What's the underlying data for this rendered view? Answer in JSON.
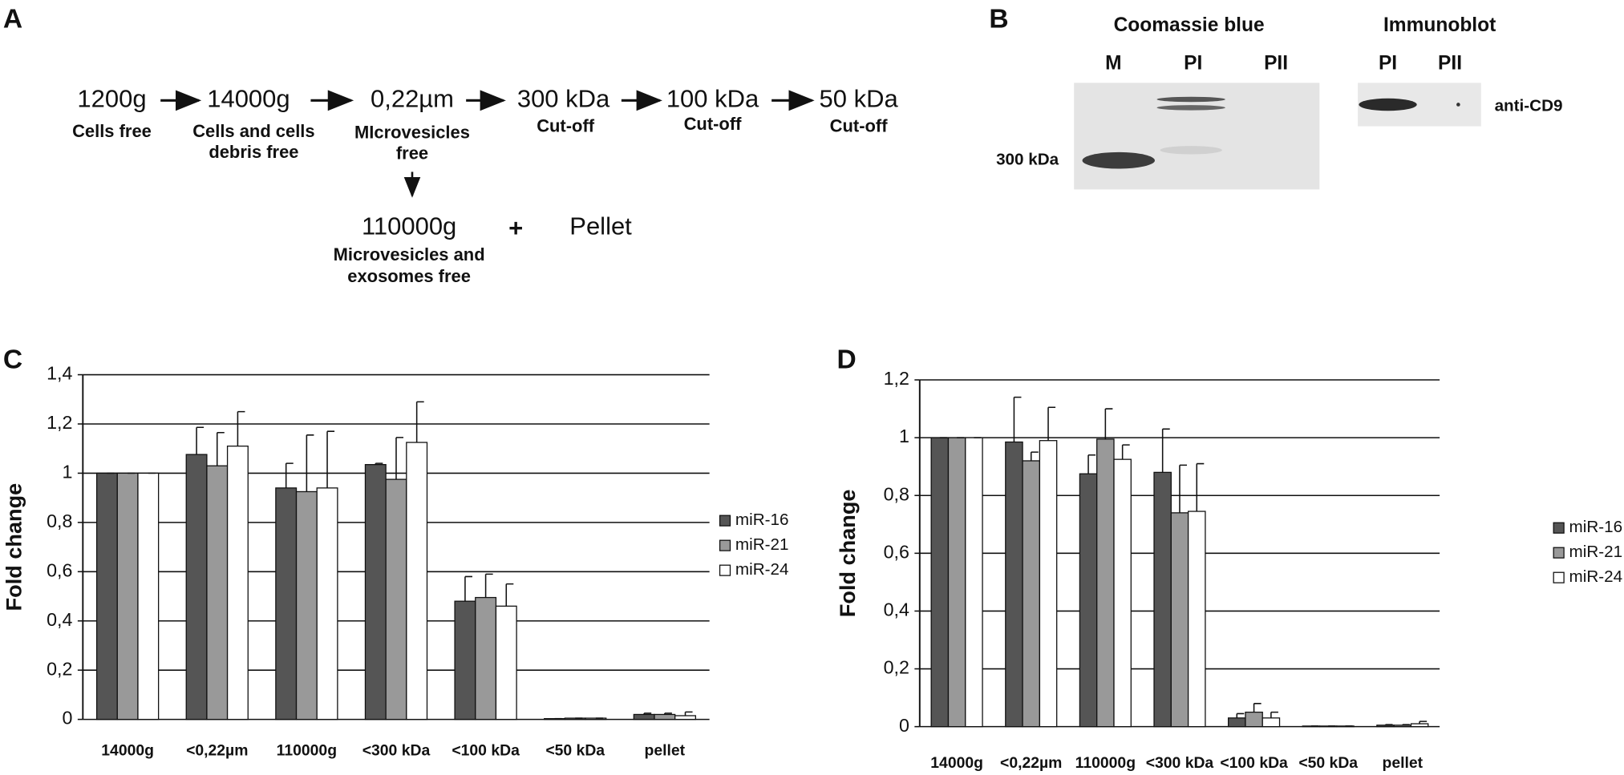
{
  "panel_a": {
    "label": "A",
    "nodes": [
      {
        "label": "1200g",
        "note": [
          "Cells free"
        ]
      },
      {
        "label": "14000g",
        "note": [
          "Cells and cells",
          "debris free"
        ]
      },
      {
        "label": "0,22µm",
        "note": [
          "MIcrovesicles",
          "free"
        ]
      },
      {
        "label": "300 kDa",
        "note": [
          "Cut-off"
        ]
      },
      {
        "label": "100 kDa",
        "note": [
          "Cut-off"
        ]
      },
      {
        "label": "50 kDa",
        "note": [
          "Cut-off"
        ]
      },
      {
        "label": "110000g",
        "note": [
          "Microvesicles and",
          "exosomes free"
        ]
      }
    ],
    "plus": "+",
    "pellet": "Pellet"
  },
  "panel_b": {
    "label": "B",
    "gel": {
      "title": "Coomassie blue",
      "lanes": [
        "M",
        "PI",
        "PII"
      ],
      "marker": "300 kDa"
    },
    "blot": {
      "title": "Immunoblot",
      "lanes": [
        "PI",
        "PII"
      ],
      "antibody": "anti-CD9"
    }
  },
  "chart_data": [
    {
      "type": "bar",
      "panel": "C",
      "y_label": "Fold change",
      "categories": [
        "14000g",
        "<0,22µm",
        "110000g",
        "<300 kDa",
        "<100 kDa",
        "<50 kDa",
        "pellet"
      ],
      "series": [
        {
          "name": "miR-16",
          "color": "#555555",
          "values": [
            1,
            1.076,
            0.94,
            1.035,
            0.48,
            0.003,
            0.02
          ],
          "errors": [
            0,
            0.11,
            0.1,
            0.005,
            0.1,
            0,
            0.005
          ]
        },
        {
          "name": "miR-21",
          "color": "#999999",
          "values": [
            1,
            1.03,
            0.925,
            0.975,
            0.495,
            0.005,
            0.02
          ],
          "errors": [
            0,
            0.135,
            0.23,
            0.17,
            0.095,
            0,
            0.005
          ]
        },
        {
          "name": "miR-24",
          "color": "#ffffff",
          "values": [
            1,
            1.11,
            0.94,
            1.125,
            0.46,
            0.005,
            0.015
          ],
          "errors": [
            0,
            0.14,
            0.23,
            0.165,
            0.09,
            0,
            0.015
          ]
        }
      ],
      "ylim": [
        0,
        1.4
      ],
      "yticks": [
        0,
        {
          "value": 0.2,
          "label": "0,2"
        },
        {
          "value": 0.4,
          "label": "0,4"
        },
        {
          "value": 0.6,
          "label": "0,6"
        },
        {
          "value": 0.8,
          "label": "0,8"
        },
        1,
        {
          "value": 1.2,
          "label": "1,2"
        },
        {
          "value": 1.4,
          "label": "1,4"
        }
      ],
      "grid": true,
      "legend": "right"
    },
    {
      "type": "bar",
      "panel": "D",
      "y_label": "Fold change",
      "categories": [
        "14000g",
        "<0,22µm",
        "110000g",
        "<300 kDa",
        "<100 kDa",
        "<50 kDa",
        "pellet"
      ],
      "series": [
        {
          "name": "miR-16",
          "color": "#555555",
          "values": [
            1,
            0.985,
            0.875,
            0.88,
            0.03,
            0.002,
            0.005
          ],
          "errors": [
            0,
            0.155,
            0.065,
            0.15,
            0.015,
            0,
            0.002
          ]
        },
        {
          "name": "miR-21",
          "color": "#999999",
          "values": [
            1,
            0.92,
            0.995,
            0.74,
            0.05,
            0.002,
            0.005
          ],
          "errors": [
            0,
            0.03,
            0.105,
            0.165,
            0.03,
            0,
            0.002
          ]
        },
        {
          "name": "miR-24",
          "color": "#ffffff",
          "values": [
            1,
            0.99,
            0.925,
            0.745,
            0.03,
            0.002,
            0.01
          ],
          "errors": [
            0,
            0.115,
            0.05,
            0.165,
            0.02,
            0,
            0.008
          ]
        }
      ],
      "ylim": [
        0,
        1.2
      ],
      "yticks": [
        0,
        {
          "value": 0.2,
          "label": "0,2"
        },
        {
          "value": 0.4,
          "label": "0,4"
        },
        {
          "value": 0.6,
          "label": "0,6"
        },
        {
          "value": 0.8,
          "label": "0,8"
        },
        1,
        {
          "value": 1.2,
          "label": "1,2"
        }
      ],
      "grid": true,
      "legend": "right"
    }
  ]
}
